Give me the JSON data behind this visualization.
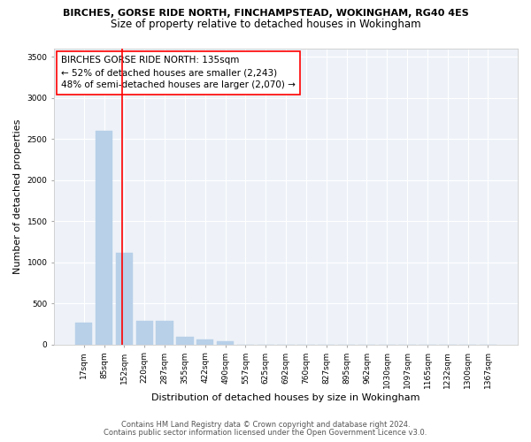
{
  "title_line1": "BIRCHES, GORSE RIDE NORTH, FINCHAMPSTEAD, WOKINGHAM, RG40 4ES",
  "title_line2": "Size of property relative to detached houses in Wokingham",
  "xlabel": "Distribution of detached houses by size in Wokingham",
  "ylabel": "Number of detached properties",
  "bar_values": [
    270,
    2600,
    1120,
    285,
    285,
    95,
    60,
    35,
    0,
    0,
    0,
    0,
    0,
    0,
    0,
    0,
    0,
    0,
    0,
    0,
    0
  ],
  "bar_labels": [
    "17sqm",
    "85sqm",
    "152sqm",
    "220sqm",
    "287sqm",
    "355sqm",
    "422sqm",
    "490sqm",
    "557sqm",
    "625sqm",
    "692sqm",
    "760sqm",
    "827sqm",
    "895sqm",
    "962sqm",
    "1030sqm",
    "1097sqm",
    "1165sqm",
    "1232sqm",
    "1300sqm",
    "1367sqm"
  ],
  "bar_color": "#b8d0e8",
  "bar_edge_color": "#b8d0e8",
  "vline_x_index": 1.88,
  "vline_color": "red",
  "annotation_text": "BIRCHES GORSE RIDE NORTH: 135sqm\n← 52% of detached houses are smaller (2,243)\n48% of semi-detached houses are larger (2,070) →",
  "annotation_box_color": "white",
  "annotation_box_edge": "red",
  "ylim": [
    0,
    3600
  ],
  "yticks": [
    0,
    500,
    1000,
    1500,
    2000,
    2500,
    3000,
    3500
  ],
  "footer_line1": "Contains HM Land Registry data © Crown copyright and database right 2024.",
  "footer_line2": "Contains public sector information licensed under the Open Government Licence v3.0.",
  "background_color": "#eef2f8",
  "grid_color": "white",
  "title1_fontsize": 8.0,
  "title2_fontsize": 8.5,
  "axis_label_fontsize": 8.0,
  "tick_fontsize": 6.5,
  "annotation_fontsize": 7.5,
  "footer_fontsize": 6.0
}
